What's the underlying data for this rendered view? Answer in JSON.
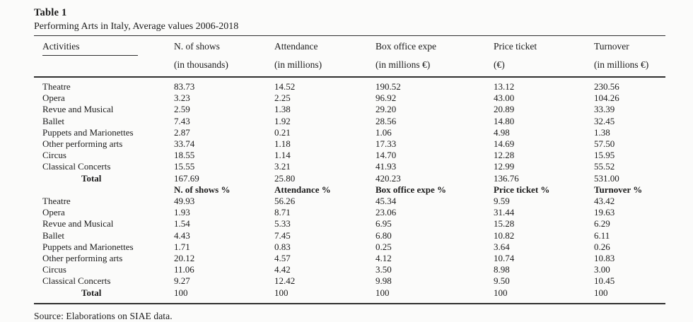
{
  "table": {
    "title": "Table 1",
    "subtitle": "Performing Arts in Italy, Average values 2006-2018",
    "columns": [
      {
        "label": "Activities",
        "sub": ""
      },
      {
        "label": "N. of shows",
        "sub": "(in thousands)"
      },
      {
        "label": "Attendance",
        "sub": "(in millions)"
      },
      {
        "label": "Box office expe",
        "sub": "(in millions €)"
      },
      {
        "label": "Price ticket",
        "sub": "(€)"
      },
      {
        "label": "Turnover",
        "sub": "(in millions €)"
      }
    ],
    "rows": [
      {
        "type": "data",
        "cells": [
          "Theatre",
          "83.73",
          "14.52",
          "190.52",
          "13.12",
          "230.56"
        ]
      },
      {
        "type": "data",
        "cells": [
          "Opera",
          "3.23",
          "2.25",
          "96.92",
          "43.00",
          "104.26"
        ]
      },
      {
        "type": "data",
        "cells": [
          "Revue and Musical",
          "2.59",
          "1.38",
          "29.20",
          "20.89",
          "33.39"
        ]
      },
      {
        "type": "data",
        "cells": [
          "Ballet",
          "7.43",
          "1.92",
          "28.56",
          "14.80",
          "32.45"
        ]
      },
      {
        "type": "data",
        "cells": [
          "Puppets and Marionettes",
          "2.87",
          "0.21",
          "1.06",
          "4.98",
          "1.38"
        ]
      },
      {
        "type": "data",
        "cells": [
          "Other performing arts",
          "33.74",
          "1.18",
          "17.33",
          "14.69",
          "57.50"
        ]
      },
      {
        "type": "data",
        "cells": [
          "Circus",
          "18.55",
          "1.14",
          "14.70",
          "12.28",
          "15.95"
        ]
      },
      {
        "type": "data",
        "cells": [
          "Classical Concerts",
          "15.55",
          "3.21",
          "41.93",
          "12.99",
          "55.52"
        ]
      },
      {
        "type": "total",
        "cells": [
          "Total",
          "167.69",
          "25.80",
          "420.23",
          "136.76",
          "531.00"
        ]
      },
      {
        "type": "subheader",
        "cells": [
          "",
          "N. of shows %",
          "Attendance %",
          "Box office expe %",
          "Price ticket %",
          "Turnover %"
        ]
      },
      {
        "type": "data",
        "cells": [
          "Theatre",
          "49.93",
          "56.26",
          "45.34",
          "9.59",
          "43.42"
        ]
      },
      {
        "type": "data",
        "cells": [
          "Opera",
          "1.93",
          "8.71",
          "23.06",
          "31.44",
          "19.63"
        ]
      },
      {
        "type": "data",
        "cells": [
          "Revue and Musical",
          "1.54",
          "5.33",
          "6.95",
          "15.28",
          "6.29"
        ]
      },
      {
        "type": "data",
        "cells": [
          "Ballet",
          "4.43",
          "7.45",
          "6.80",
          "10.82",
          "6.11"
        ]
      },
      {
        "type": "data",
        "cells": [
          "Puppets and Marionettes",
          "1.71",
          "0.83",
          "0.25",
          "3.64",
          "0.26"
        ]
      },
      {
        "type": "data",
        "cells": [
          "Other performing arts",
          "20.12",
          "4.57",
          "4.12",
          "10.74",
          "10.83"
        ]
      },
      {
        "type": "data",
        "cells": [
          "Circus",
          "11.06",
          "4.42",
          "3.50",
          "8.98",
          "3.00"
        ]
      },
      {
        "type": "data",
        "cells": [
          "Classical Concerts",
          "9.27",
          "12.42",
          "9.98",
          "9.50",
          "10.45"
        ]
      },
      {
        "type": "total",
        "cells": [
          "Total",
          "100",
          "100",
          "100",
          "100",
          "100"
        ]
      }
    ],
    "source": "Source: Elaborations on SIAE data.",
    "colors": {
      "text": "#1b1b1b",
      "rule": "#2e2e2e",
      "background": "#fbfbfa"
    }
  }
}
